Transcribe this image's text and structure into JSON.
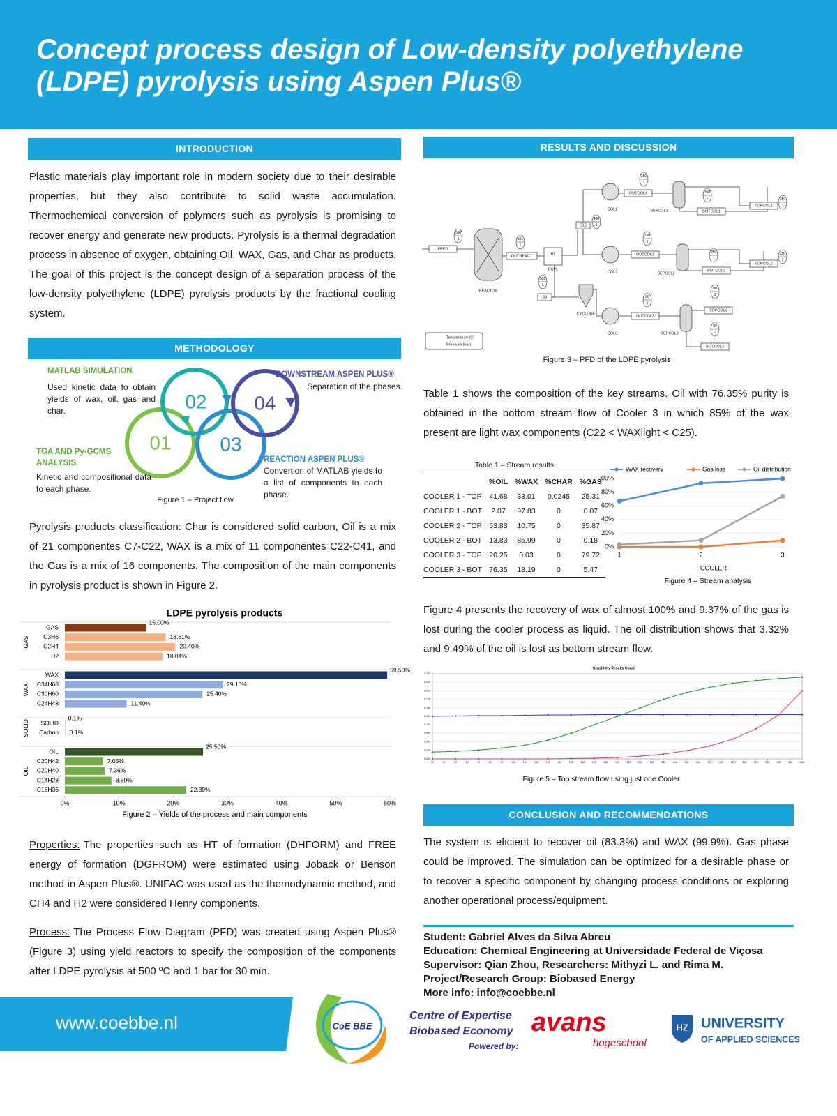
{
  "header": {
    "title": "Concept process design of Low-density polyethylene (LDPE) pyrolysis using Aspen Plus®"
  },
  "introduction": {
    "heading": "INTRODUCTION",
    "text": "Plastic materials play important role in modern society due to their desirable properties, but they also contribute to solid waste accumulation. Thermochemical conversion of polymers such as pyrolysis is promising to recover energy and generate new products. Pyrolysis is a thermal degradation process in absence of oxygen, obtaining Oil, WAX, Gas, and Char as products. The goal of this project is the concept design of a separation process of the low-density polyethylene (LDPE) pyrolysis products by the fractional cooling system."
  },
  "methodology": {
    "heading": "METHODOLOGY",
    "steps": [
      {
        "number": "01",
        "title": "TGA AND Py-GCMS ANALYSIS",
        "text": "Kinetic and compositional data to each phase."
      },
      {
        "number": "02",
        "title": "MATLAB SIMULATION",
        "text": "Used kinetic data to obtain yields of wax, oil, gas and char."
      },
      {
        "number": "03",
        "title": "REACTION ASPEN PLUS®",
        "text": "Convertion of MATLAB yields to a list of components to each phase."
      },
      {
        "number": "04",
        "title": "DOWNSTREAM ASPEN PLUS®",
        "text": "Separation of the phases."
      }
    ],
    "caption": "Figure 1 – Project flow"
  },
  "classification": {
    "label": "Pyrolysis products classification:",
    "text": "Char is considered solid carbon, Oil is a mix of 21 componentes C7-C22, WAX is a mix of 11 componentes C22-C41, and the Gas is a mix of 16 components. The composition of the main components in pyrolysis product is shown in Figure 2."
  },
  "figure2": {
    "type": "bar",
    "title": "LDPE pyrolysis products",
    "groups": [
      {
        "name": "GAS",
        "categories": [
          "GAS",
          "C3H6",
          "C2H4",
          "H2"
        ],
        "values": [
          15,
          18.61,
          20.4,
          18.04
        ],
        "value_labels": [
          "15,00%",
          "18.61%",
          "20.40%",
          "18.04%"
        ],
        "colors": [
          "#8b3a0f",
          "#f4b183",
          "#f4b183",
          "#f4b183"
        ]
      },
      {
        "name": "WAX",
        "categories": [
          "WAX",
          "C34H68",
          "C30H60",
          "C24H48"
        ],
        "values": [
          59.5,
          29.1,
          25.4,
          11.4
        ],
        "value_labels": [
          "59,50%",
          "29.10%",
          "25.40%",
          "11.40%"
        ],
        "colors": [
          "#1f3864",
          "#8faadc",
          "#8faadc",
          "#8faadc"
        ]
      },
      {
        "name": "SOLID",
        "categories": [
          "SOLID",
          "Carbon"
        ],
        "values": [
          0.1,
          0.1
        ],
        "value_labels": [
          "0.1%",
          "0.1%"
        ],
        "colors": [
          "#ffc000",
          "#ffd966"
        ]
      },
      {
        "name": "OIL",
        "categories": [
          "OIL",
          "C20H42",
          "C20H40",
          "C14H28",
          "C18H36"
        ],
        "values": [
          25.5,
          7.05,
          7.36,
          8.59,
          22.39
        ],
        "value_labels": [
          "25,50%",
          "7.05%",
          "7.36%",
          "8.59%",
          "22.39%"
        ],
        "colors": [
          "#375623",
          "#70ad47",
          "#70ad47",
          "#70ad47",
          "#70ad47"
        ]
      }
    ],
    "xlim": [
      0,
      60
    ],
    "xticks": [
      {
        "value": 0,
        "label": "0%"
      },
      {
        "value": 10,
        "label": "10%"
      },
      {
        "value": 20,
        "label": "20%"
      },
      {
        "value": 30,
        "label": "30%"
      },
      {
        "value": 40,
        "label": "40%"
      },
      {
        "value": 50,
        "label": "50%"
      },
      {
        "value": 60,
        "label": "60%"
      }
    ],
    "caption": "Figure 2 – Yields of the process and main components"
  },
  "properties": {
    "label": "Properties:",
    "text": "The properties such as HT of formation (DHFORM) and FREE energy of formation (DGFROM) were estimated using Joback or Benson method in Aspen Plus®. UNIFAC was used as the themodynamic method, and CH4 and H2 were considered Henry components."
  },
  "process": {
    "label": "Process:",
    "text": "The Process Flow Diagram (PFD) was created using Aspen Plus® (Figure 3) using yield reactors to specify the composition of the components after LDPE pyrolysis at 500 ºC and 1 bar for 30 min."
  },
  "results": {
    "heading": "RESULTS AND DISCUSSION",
    "figure3": {
      "blocks": [
        "FEED",
        "REACTOR",
        "OUTREACT",
        "B1",
        "DUPL",
        "S3",
        "CYCLONE",
        "S13",
        "COL1",
        "OUTCOL1",
        "SEPCOL1",
        "BOTCOL1",
        "TOPCOL1",
        "COL2",
        "OUTCOL2",
        "SEPCOL2",
        "BOTCOL2",
        "TOPCOL2",
        "COL3",
        "OUTCOL3",
        "SEPCOL3",
        "TOPCOL3",
        "BOTCOL3"
      ],
      "tags": [
        {
          "temperature": "500",
          "pressure": "1"
        },
        {
          "temperature": "501",
          "pressure": "1"
        },
        {
          "temperature": "501",
          "pressure": "1"
        },
        {
          "temperature": "400",
          "pressure": "1"
        },
        {
          "temperature": "350",
          "pressure": "1"
        },
        {
          "temperature": "350",
          "pressure": "1"
        },
        {
          "temperature": "350",
          "pressure": "1"
        },
        {
          "temperature": "250",
          "pressure": "1"
        },
        {
          "temperature": "250",
          "pressure": "1"
        },
        {
          "temperature": "250",
          "pressure": "1"
        },
        {
          "temperature": "80",
          "pressure": "1"
        },
        {
          "temperature": "80",
          "pressure": "1"
        },
        {
          "temperature": "80",
          "pressure": "1"
        }
      ],
      "legend": [
        "Temperature (C)",
        "Pressure (bar)"
      ],
      "caption": "Figure 3 – PFD of the LDPE pyrolysis"
    },
    "paragraph1": "Table 1 shows the composition of the key streams. Oil with 76.35% purity is obtained in the bottom stream flow of Cooler 3 in which 85% of the wax present are light wax components (C22 < WAXlight < C25).",
    "table1": {
      "title": "Table 1 – Stream results",
      "columns": [
        "%OIL",
        "%WAX",
        "%CHAR",
        "%GAS"
      ],
      "rows": [
        {
          "name": "COOLER 1 - TOP",
          "values": [
            41.68,
            33.01,
            0.0245,
            25.31
          ]
        },
        {
          "name": "COOLER 1 - BOT",
          "values": [
            2.07,
            97.83,
            0,
            0.07
          ]
        },
        {
          "name": "COOLER 2 - TOP",
          "values": [
            53.83,
            10.75,
            0,
            35.87
          ]
        },
        {
          "name": "COOLER 2 - BOT",
          "values": [
            13.83,
            85.99,
            0,
            0.18
          ]
        },
        {
          "name": "COOLER 3 - TOP",
          "values": [
            20.25,
            0.03,
            0,
            79.72
          ]
        },
        {
          "name": "COOLER 3 - BOT",
          "values": [
            76.35,
            18.19,
            0,
            5.47
          ]
        }
      ]
    },
    "figure4": {
      "type": "line",
      "x": [
        1,
        2,
        3
      ],
      "xlim": [
        1,
        3
      ],
      "xticks": [
        1,
        2,
        3
      ],
      "xlabel": "COOLER",
      "ylim": [
        0,
        100
      ],
      "yticks": [
        {
          "value": 0,
          "label": "0%"
        },
        {
          "value": 20,
          "label": "20%"
        },
        {
          "value": 40,
          "label": "40%"
        },
        {
          "value": 60,
          "label": "60%"
        },
        {
          "value": 80,
          "label": "80%"
        },
        {
          "value": 100,
          "label": "100%"
        }
      ],
      "grid": true,
      "series": [
        {
          "name": "WAX recovery",
          "color": "#4a8fd4",
          "values": [
            67,
            93,
            99.9
          ]
        },
        {
          "name": "Gas loss",
          "color": "#ed7d31",
          "values": [
            0,
            0,
            9.37
          ]
        },
        {
          "name": "Oil distribution",
          "color": "#a5a5a5",
          "values": [
            3.32,
            9.49,
            74
          ]
        }
      ],
      "caption": "Figure 4 – Stream analysis"
    },
    "paragraph2": "Figure 4 presents the recovery of wax of almost 100% and 9.37% of the gas is lost during the cooler process as liquid. The oil distribution shows that 3.32% and 9.49% of the oil is lost as bottom stream flow.",
    "figure5": {
      "type": "line",
      "title": "Sensitivity Results Curve",
      "x": [
        30,
        50,
        70,
        90,
        110,
        130,
        150,
        170,
        190,
        210,
        230,
        250,
        270,
        290,
        310,
        330,
        350
      ],
      "xlim": [
        30,
        350
      ],
      "xticks": [
        30,
        40,
        50,
        60,
        70,
        80,
        90,
        100,
        110,
        120,
        130,
        140,
        150,
        160,
        170,
        180,
        190,
        200,
        210,
        220,
        230,
        240,
        250,
        260,
        270,
        280,
        290,
        300,
        310,
        320,
        330,
        340,
        350
      ],
      "ylim": [
        0,
        0.25
      ],
      "yticks": [
        {
          "value": 0,
          "label": "0.000"
        },
        {
          "value": 0.025,
          "label": "0.025"
        },
        {
          "value": 0.05,
          "label": "0.050"
        },
        {
          "value": 0.075,
          "label": "0.075"
        },
        {
          "value": 0.1,
          "label": "0.100"
        },
        {
          "value": 0.125,
          "label": "0.125"
        },
        {
          "value": 0.15,
          "label": "0.150"
        },
        {
          "value": 0.175,
          "label": "0.175"
        },
        {
          "value": 0.2,
          "label": "0.200"
        },
        {
          "value": 0.225,
          "label": "0.225"
        },
        {
          "value": 0.25,
          "label": "0.250"
        }
      ],
      "grid": true,
      "series": [
        {
          "color": "#3b3bc8",
          "values": [
            0.125,
            0.126,
            0.127,
            0.127,
            0.128,
            0.129,
            0.129,
            0.13,
            0.13,
            0.13,
            0.13,
            0.13,
            0.13,
            0.13,
            0.13,
            0.13,
            0.13
          ]
        },
        {
          "color": "#1f9a2a",
          "values": [
            0.02,
            0.022,
            0.026,
            0.032,
            0.04,
            0.055,
            0.075,
            0.1,
            0.125,
            0.15,
            0.175,
            0.195,
            0.21,
            0.222,
            0.23,
            0.236,
            0.24
          ]
        },
        {
          "color": "#e8347a",
          "values": [
            0,
            0,
            0,
            0,
            0,
            0,
            0.001,
            0.002,
            0.004,
            0.008,
            0.014,
            0.024,
            0.038,
            0.058,
            0.088,
            0.13,
            0.2
          ]
        }
      ],
      "caption": "Figure 5 – Top stream flow using just one Cooler"
    }
  },
  "conclusion": {
    "heading": "CONCLUSION AND RECOMMENDATIONS",
    "text": "The system is eficient to recover oil (83.3%) and WAX (99.9%). Gas phase could be improved. The simulation can be optimized for a desirable phase or to recover a specific component by changing process conditions or exploring another operational process/equipment."
  },
  "credits": [
    "Student: Gabriel Alves da Silva Abreu",
    "Education: Chemical Engineering at Universidade Federal de Viçosa",
    "Supervisor: Qian Zhou, Researchers: Mithyzi L. and Rima M.",
    "Project/Research Group: Biobased Energy",
    "More info: info@coebbe.nl"
  ],
  "footer": {
    "url": "www.coebbe.nl",
    "coe_logo": "CoE BBE",
    "centre": [
      "Centre of Expertise",
      "Biobased Economy"
    ],
    "powered": "Powered by:",
    "avans": "avans",
    "avans_sub": "hogeschool",
    "hz": "HZ",
    "university": "UNIVERSITY",
    "university_sub": "OF APPLIED SCIENCES"
  }
}
